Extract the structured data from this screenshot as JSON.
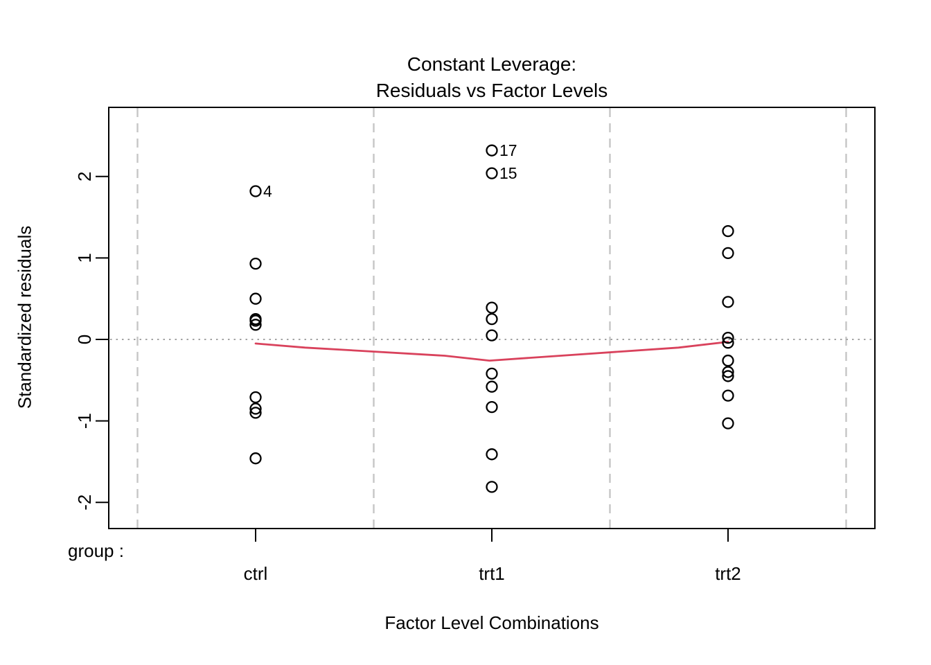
{
  "chart_data": {
    "type": "scatter",
    "title_line1": "Constant Leverage:",
    "title_line2": "Residuals vs Factor Levels",
    "xlabel": "Factor Level Combinations",
    "ylabel": "Standardized residuals",
    "factor_name_label": "group :",
    "categories": [
      "ctrl",
      "trt1",
      "trt2"
    ],
    "y_ticks": [
      -2,
      -1,
      0,
      1,
      2
    ],
    "ylim": [
      -2.32,
      2.85
    ],
    "grid": "dashed vertical separators at factor-level boundaries, dotted horizontal zero line",
    "legend_position": "none",
    "series": [
      {
        "name": "ctrl",
        "values": [
          1.82,
          0.93,
          0.5,
          0.25,
          0.23,
          0.18,
          -0.71,
          -0.85,
          -0.9,
          -1.46
        ]
      },
      {
        "name": "trt1",
        "values": [
          2.32,
          2.04,
          0.39,
          0.25,
          0.05,
          -0.42,
          -0.58,
          -0.83,
          -1.41,
          -1.81
        ]
      },
      {
        "name": "trt2",
        "values": [
          1.33,
          1.06,
          0.46,
          0.02,
          -0.04,
          -0.26,
          -0.4,
          -0.45,
          -0.69,
          -1.03
        ]
      }
    ],
    "point_labels": [
      {
        "text": "4",
        "group": "ctrl",
        "value": 1.82
      },
      {
        "text": "17",
        "group": "trt1",
        "value": 2.32
      },
      {
        "text": "15",
        "group": "trt1",
        "value": 2.04
      }
    ],
    "smooth_line": {
      "x_group_index": [
        1.0,
        1.21,
        1.8,
        1.99,
        2.79,
        3.0
      ],
      "values": [
        -0.05,
        -0.1,
        -0.2,
        -0.26,
        -0.1,
        -0.03
      ]
    },
    "zero_line_value": 0,
    "colors": {
      "point_stroke": "#000000",
      "box": "#000000",
      "grid_dashed": "#c6c6c6",
      "zero_dotted": "#a3a3a3",
      "smooth": "#d9425c",
      "text": "#000000"
    }
  }
}
